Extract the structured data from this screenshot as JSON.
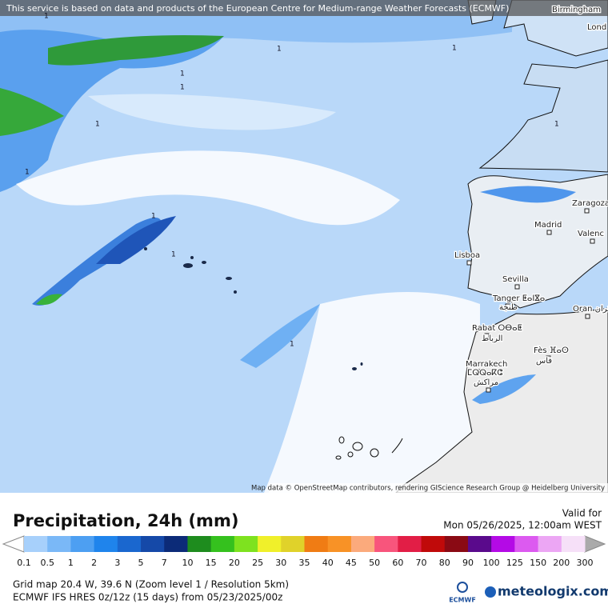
{
  "banner": "This service is based on data and products of the European Centre for Medium-range Weather Forecasts (ECMWF)",
  "attribution": "Map data © OpenStreetMap contributors, rendering GIScience Research Group @ Heidelberg University",
  "cities": [
    "Birmingham",
    "Lond",
    "Zaragoza",
    "Madrid",
    "Valenc",
    "Lisboa",
    "Sevilla",
    "Tanger ⵟⴰⵏⴵⴰ",
    "طنجة",
    "Rabat ⵔⴱⴰⵟ",
    "الرباط",
    "Fès ⴼⴰⵙ",
    "فاس",
    "Marrakech",
    "ⵎⵕⵕⴰⴽⵛ",
    "مراكش",
    "Oran وهران"
  ],
  "contour_labels": [
    "1",
    "1",
    "1",
    "1",
    "1",
    "1",
    "1",
    "1",
    "1",
    "1",
    "1"
  ],
  "legend": {
    "title": "Precipitation, 24h (mm)",
    "valid_label": "Valid for",
    "valid_time": "Mon 05/26/2025, 12:00am WEST",
    "levels": [
      0.1,
      0.5,
      1,
      2,
      3,
      5,
      7,
      10,
      15,
      20,
      25,
      30,
      35,
      40,
      45,
      50,
      60,
      70,
      80,
      90,
      100,
      125,
      150,
      200,
      300
    ],
    "colors": [
      "#a7d0fb",
      "#7ab8f7",
      "#4d9ff2",
      "#1f84ec",
      "#1a67cf",
      "#1549a8",
      "#0c2b78",
      "#1e8c1e",
      "#35c11e",
      "#7ee21f",
      "#f0f02a",
      "#e0d22a",
      "#f07c14",
      "#f89226",
      "#fbaa7c",
      "#f8557c",
      "#e21e46",
      "#c00a0a",
      "#8a0a14",
      "#5a0a8c",
      "#b40ae6",
      "#dc5af0",
      "#eca6f4",
      "#f6e0f8"
    ],
    "under_color": "#ffffff",
    "over_color": "#aaaaaa"
  },
  "footer": {
    "grid": "Grid map 20.4 W, 39.6 N (Zoom level 1 / Resolution 5km)",
    "model": "ECMWF IFS HRES 0z/12z (15 days)  from  05/23/2025/00z",
    "ecmwf": "ECMWF",
    "brand": "meteologix.com"
  }
}
